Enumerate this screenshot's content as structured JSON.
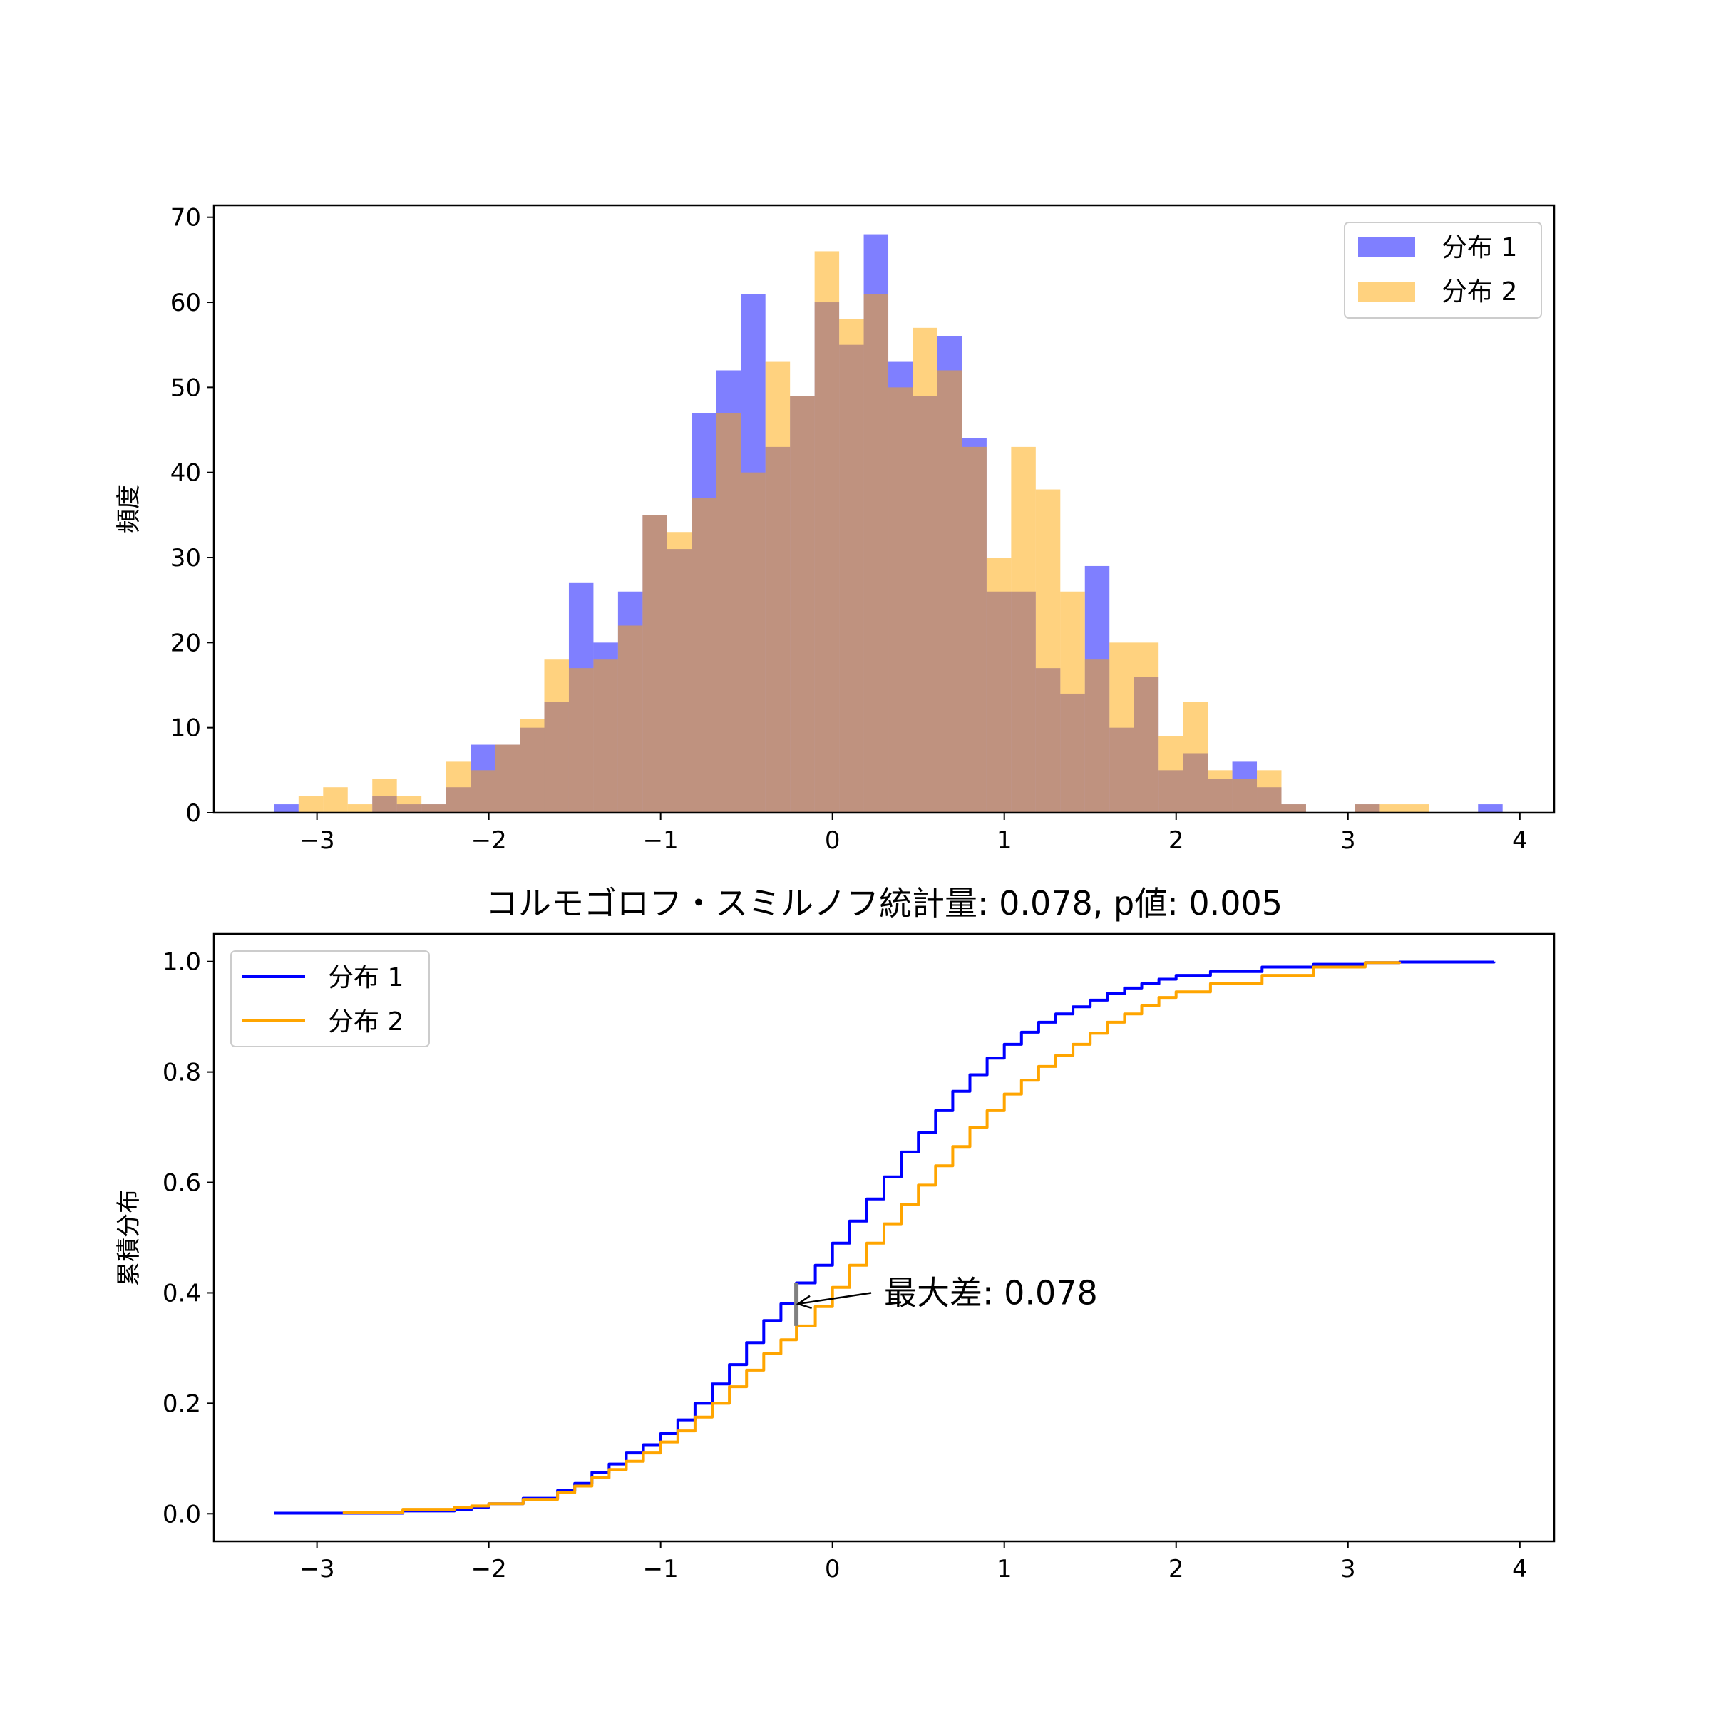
{
  "colors": {
    "series1": "#0000ff",
    "series2": "#ffa500",
    "maxdiff_marker": "#808080"
  },
  "chart_data": [
    {
      "type": "bar",
      "subtype": "overlaid-histogram",
      "ylabel": "頻度",
      "xlim": [
        -3.6,
        4.2
      ],
      "ylim": [
        0,
        71.4
      ],
      "xticks": [
        -3,
        -2,
        -1,
        0,
        1,
        2,
        3,
        4
      ],
      "xtick_labels": [
        "−3",
        "−2",
        "−1",
        "0",
        "1",
        "2",
        "3",
        "4"
      ],
      "yticks": [
        0,
        10,
        20,
        30,
        40,
        50,
        60,
        70
      ],
      "ytick_labels": [
        "0",
        "10",
        "20",
        "30",
        "40",
        "50",
        "60",
        "70"
      ],
      "legend_position": "upper right",
      "bin_edges": [
        -3.25,
        -3.107,
        -2.964,
        -2.821,
        -2.678,
        -2.535,
        -2.392,
        -2.249,
        -2.106,
        -1.963,
        -1.82,
        -1.677,
        -1.534,
        -1.391,
        -1.248,
        -1.105,
        -0.962,
        -0.819,
        -0.676,
        -0.533,
        -0.39,
        -0.247,
        -0.104,
        0.039,
        0.182,
        0.325,
        0.468,
        0.611,
        0.754,
        0.897,
        1.04,
        1.183,
        1.326,
        1.469,
        1.612,
        1.755,
        1.898,
        2.041,
        2.184,
        2.327,
        2.47,
        2.613,
        2.756,
        2.899,
        3.042,
        3.185,
        3.328,
        3.471,
        3.614,
        3.757,
        3.9
      ],
      "series": [
        {
          "name": "分布 1",
          "color": "#0000ff",
          "alpha": 0.5,
          "values": [
            1,
            0,
            0,
            0,
            2,
            1,
            1,
            3,
            8,
            8,
            10,
            13,
            27,
            20,
            26,
            35,
            31,
            47,
            52,
            61,
            43,
            49,
            60,
            55,
            68,
            53,
            49,
            56,
            44,
            26,
            26,
            17,
            14,
            29,
            10,
            16,
            5,
            7,
            4,
            6,
            3,
            1,
            0,
            0,
            1,
            0,
            0,
            0,
            0,
            1
          ]
        },
        {
          "name": "分布 2",
          "color": "#ffa500",
          "alpha": 0.5,
          "values": [
            0,
            2,
            3,
            1,
            4,
            2,
            1,
            6,
            5,
            8,
            11,
            18,
            17,
            18,
            22,
            35,
            33,
            37,
            47,
            40,
            53,
            49,
            66,
            58,
            61,
            50,
            57,
            52,
            43,
            30,
            43,
            38,
            26,
            18,
            20,
            20,
            9,
            13,
            5,
            4,
            5,
            1,
            0,
            0,
            1,
            1,
            1,
            0,
            0,
            0
          ]
        }
      ]
    },
    {
      "type": "line",
      "subtype": "empirical-cdf",
      "title": "コルモゴロフ・スミルノフ統計量: 0.078, p値: 0.005",
      "ylabel": "累積分布",
      "xlim": [
        -3.6,
        4.2
      ],
      "ylim": [
        -0.05,
        1.05
      ],
      "xticks": [
        -3,
        -2,
        -1,
        0,
        1,
        2,
        3,
        4
      ],
      "xtick_labels": [
        "−3",
        "−2",
        "−1",
        "0",
        "1",
        "2",
        "3",
        "4"
      ],
      "yticks": [
        0.0,
        0.2,
        0.4,
        0.6,
        0.8,
        1.0
      ],
      "ytick_labels": [
        "0.0",
        "0.2",
        "0.4",
        "0.6",
        "0.8",
        "1.0"
      ],
      "legend_position": "upper left",
      "series": [
        {
          "name": "分布 1",
          "color": "#0000ff",
          "x": [
            -3.25,
            -2.9,
            -2.5,
            -2.2,
            -2.1,
            -2.0,
            -1.8,
            -1.6,
            -1.5,
            -1.4,
            -1.3,
            -1.2,
            -1.1,
            -1.0,
            -0.9,
            -0.8,
            -0.7,
            -0.6,
            -0.5,
            -0.4,
            -0.3,
            -0.21,
            -0.1,
            0.0,
            0.1,
            0.2,
            0.3,
            0.4,
            0.5,
            0.6,
            0.7,
            0.8,
            0.9,
            1.0,
            1.1,
            1.2,
            1.3,
            1.4,
            1.5,
            1.6,
            1.7,
            1.8,
            1.9,
            2.0,
            2.2,
            2.5,
            2.8,
            3.1,
            3.3,
            3.85
          ],
          "y": [
            0.001,
            0.001,
            0.005,
            0.008,
            0.012,
            0.018,
            0.028,
            0.042,
            0.055,
            0.075,
            0.09,
            0.11,
            0.125,
            0.145,
            0.17,
            0.2,
            0.235,
            0.27,
            0.31,
            0.35,
            0.38,
            0.418,
            0.45,
            0.49,
            0.53,
            0.57,
            0.61,
            0.655,
            0.69,
            0.73,
            0.765,
            0.795,
            0.825,
            0.85,
            0.872,
            0.89,
            0.905,
            0.918,
            0.93,
            0.942,
            0.952,
            0.96,
            0.968,
            0.975,
            0.982,
            0.99,
            0.995,
            0.998,
            0.999,
            1.0
          ]
        },
        {
          "name": "分布 2",
          "color": "#ffa500",
          "x": [
            -2.85,
            -2.5,
            -2.2,
            -2.1,
            -2.0,
            -1.8,
            -1.6,
            -1.5,
            -1.4,
            -1.3,
            -1.2,
            -1.1,
            -1.0,
            -0.9,
            -0.8,
            -0.7,
            -0.6,
            -0.5,
            -0.4,
            -0.3,
            -0.21,
            -0.1,
            0.0,
            0.1,
            0.2,
            0.3,
            0.4,
            0.5,
            0.6,
            0.7,
            0.8,
            0.9,
            1.0,
            1.1,
            1.2,
            1.3,
            1.4,
            1.5,
            1.6,
            1.7,
            1.8,
            1.9,
            2.0,
            2.2,
            2.5,
            2.8,
            3.1,
            3.3
          ],
          "y": [
            0.002,
            0.008,
            0.012,
            0.014,
            0.018,
            0.026,
            0.038,
            0.05,
            0.065,
            0.08,
            0.095,
            0.11,
            0.13,
            0.15,
            0.175,
            0.2,
            0.23,
            0.26,
            0.29,
            0.315,
            0.34,
            0.375,
            0.41,
            0.45,
            0.49,
            0.525,
            0.56,
            0.595,
            0.63,
            0.665,
            0.7,
            0.73,
            0.76,
            0.785,
            0.81,
            0.83,
            0.85,
            0.87,
            0.89,
            0.905,
            0.92,
            0.935,
            0.945,
            0.96,
            0.975,
            0.99,
            0.998,
            1.0
          ]
        }
      ],
      "max_diff_marker": {
        "x": -0.21,
        "y_from": 0.34,
        "y_to": 0.418
      },
      "annotation": {
        "text": "最大差: 0.078",
        "text_x": 0.3,
        "text_y": 0.4,
        "arrow_to_x": -0.2,
        "arrow_to_y": 0.38
      }
    }
  ]
}
